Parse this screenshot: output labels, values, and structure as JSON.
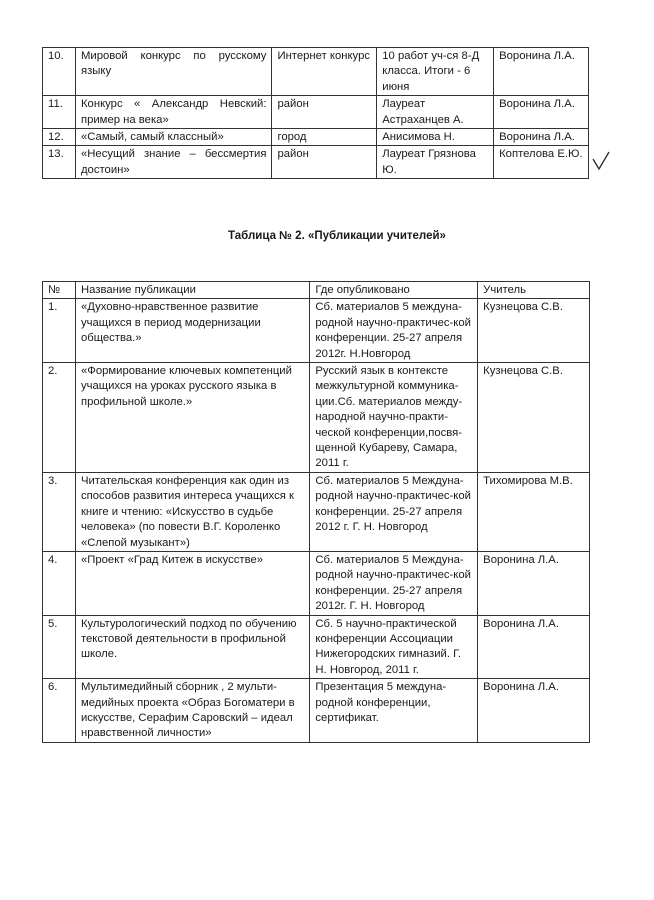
{
  "table1": {
    "rows": [
      {
        "num": "10.",
        "name": "Мировой конкурс по русскому языку",
        "level": "Интернет конкурс",
        "result": "10 работ уч-ся 8-Д класса. Итоги - 6 июня",
        "teacher": "Воронина Л.А."
      },
      {
        "num": "11.",
        "name": "Конкурс « Александр Невский: пример на века»",
        "level": "район",
        "result": "Лауреат Астраханцев А.",
        "teacher": "Воронина Л.А."
      },
      {
        "num": "12.",
        "name": "«Самый, самый классный»",
        "level": "город",
        "result": "Анисимова Н.",
        "teacher": "Воронина Л.А."
      },
      {
        "num": "13.",
        "name": "«Несущий знание – бессмертия достоин»",
        "level": "район",
        "result": "Лауреат Грязнова Ю.",
        "teacher": "Коптелова Е.Ю."
      }
    ]
  },
  "title": "Таблица № 2. «Публикации учителей»",
  "table2": {
    "headers": [
      "№",
      "Название публикации",
      "Где опубликовано",
      "Учитель"
    ],
    "rows": [
      {
        "num": "1.",
        "name": "«Духовно-нравственное развитие учащихся в период модернизации общества.»",
        "where": "Сб. материалов 5 междуна-родной научно-практичес-кой конференции. 25-27 апреля 2012г. Н.Новгород",
        "teacher": "Кузнецова С.В."
      },
      {
        "num": "2.",
        "name": "«Формирование ключевых компетенций учащихся на уроках русского языка в профильной школе.»",
        "where": "Русский язык в контексте межкультурной коммуника-ции.Сб. материалов между-народной научно-практи-ческой конференции,посвя-щенной Кубареву, Самара, 2011 г.",
        "teacher": "Кузнецова С.В."
      },
      {
        "num": "3.",
        "name": "Читательская конференция как один из способов развития интереса учащихся к книге и чтению: «Искусство в судьбе человека» (по повести В.Г. Короленко «Слепой музыкант»)",
        "where": "Сб. материалов 5 Междуна-родной научно-практичес-кой конференции. 25-27 апреля 2012 г. Г. Н. Новгород",
        "teacher": "Тихомирова М.В."
      },
      {
        "num": "4.",
        "name": "«Проект «Град Китеж в искусстве»",
        "where": "Сб. материалов 5 Междуна-родной научно-практичес-кой конференции. 25-27 апреля 2012г. Г. Н. Новгород",
        "teacher": "Воронина Л.А."
      },
      {
        "num": "5.",
        "name": "Культурологический подход по обучению текстовой деятельности в профильной школе.",
        "where": "Сб. 5 научно-практической конференции Ассоциации Нижегородских гимназий. Г. Н. Новгород, 2011 г.",
        "teacher": "Воронина Л.А."
      },
      {
        "num": "6.",
        "name": "Мультимедийный сборник , 2 мульти-медийных проекта «Образ Богоматери в искусстве, Серафим Саровский – идеал нравственной личности»",
        "where": "Презентация 5 междуна-родной конференции, сертификат.",
        "teacher": "Воронина Л.А."
      }
    ]
  }
}
